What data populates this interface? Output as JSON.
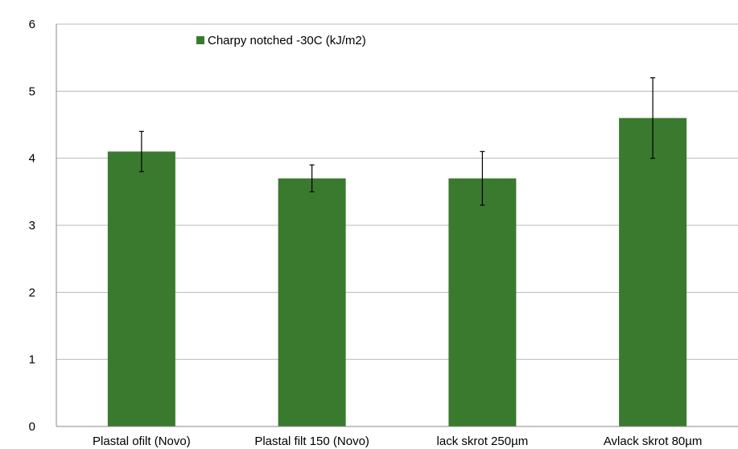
{
  "chart_data": {
    "type": "bar",
    "categories": [
      "Plastal ofilt (Novo)",
      "Plastal filt 150 (Novo)",
      "lack skrot 250µm",
      "Avlack skrot 80µm"
    ],
    "series": [
      {
        "name": "Charpy notched -30C (kJ/m2)",
        "values": [
          4.1,
          3.7,
          3.7,
          4.6
        ],
        "error_low": [
          3.8,
          3.5,
          3.3,
          4.0
        ],
        "error_high": [
          4.4,
          3.9,
          4.1,
          5.2
        ],
        "color": "#3a7a2e"
      }
    ],
    "yticks": [
      "0",
      "1",
      "2",
      "3",
      "4",
      "5",
      "6"
    ],
    "ylim": [
      0,
      6
    ],
    "grid": "horizontal",
    "legend_position": "top-left",
    "title": "",
    "xlabel": "",
    "ylabel": ""
  }
}
